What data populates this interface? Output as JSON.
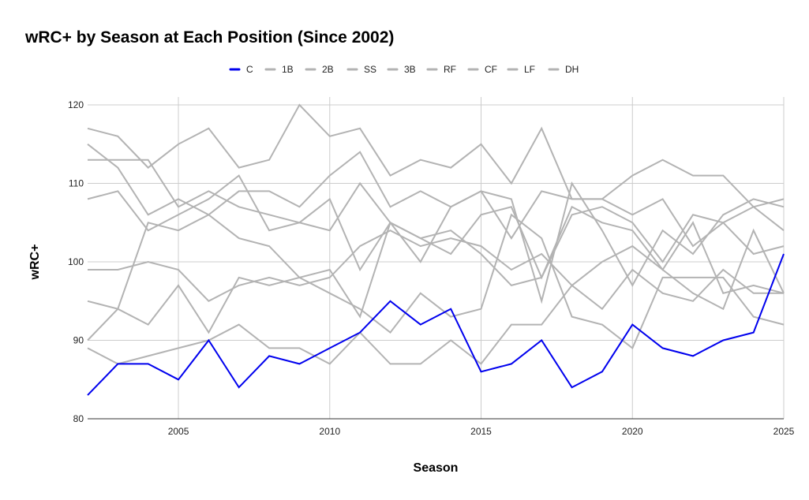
{
  "chart_data": {
    "type": "line",
    "title": "wRC+ by Season at Each Position (Since 2002)",
    "xlabel": "Season",
    "ylabel": "wRC+",
    "xlim": [
      2002,
      2025
    ],
    "ylim": [
      80,
      120
    ],
    "x_ticks": [
      2005,
      2010,
      2015,
      2020,
      2025
    ],
    "y_ticks": [
      80,
      90,
      100,
      110,
      120
    ],
    "grid": true,
    "legend_position": "top-center",
    "x": [
      2002,
      2003,
      2004,
      2005,
      2006,
      2007,
      2008,
      2009,
      2010,
      2011,
      2012,
      2013,
      2014,
      2015,
      2016,
      2017,
      2018,
      2019,
      2020,
      2021,
      2022,
      2023,
      2024,
      2025
    ],
    "series": [
      {
        "name": "1B",
        "color": "#b3b3b3",
        "values": [
          117,
          116,
          112,
          115,
          117,
          112,
          113,
          120,
          116,
          117,
          111,
          113,
          112,
          115,
          110,
          117,
          108,
          108,
          111,
          113,
          111,
          111,
          107,
          104
        ]
      },
      {
        "name": "2B",
        "color": "#b3b3b3",
        "values": [
          89,
          87,
          88,
          89,
          90,
          92,
          89,
          89,
          87,
          91,
          87,
          87,
          90,
          87,
          92,
          92,
          97,
          100,
          102,
          99,
          96,
          94,
          104,
          96
        ]
      },
      {
        "name": "SS",
        "color": "#b3b3b3",
        "values": [
          90,
          94,
          105,
          104,
          106,
          109,
          109,
          107,
          111,
          114,
          107,
          109,
          107,
          109,
          108,
          95,
          110,
          104,
          97,
          104,
          101,
          106,
          108,
          107
        ]
      },
      {
        "name": "3B",
        "color": "#b3b3b3",
        "values": [
          108,
          109,
          104,
          106,
          108,
          111,
          104,
          105,
          104,
          110,
          105,
          103,
          101,
          106,
          107,
          98,
          107,
          105,
          104,
          99,
          105,
          96,
          97,
          96
        ]
      },
      {
        "name": "RF",
        "color": "#b3b3b3",
        "values": [
          115,
          112,
          106,
          108,
          106,
          103,
          102,
          98,
          99,
          93,
          105,
          100,
          107,
          109,
          103,
          109,
          108,
          108,
          106,
          108,
          102,
          105,
          101,
          102
        ]
      },
      {
        "name": "CF",
        "color": "#b3b3b3",
        "values": [
          99,
          99,
          100,
          99,
          95,
          97,
          98,
          97,
          98,
          102,
          104,
          102,
          103,
          102,
          99,
          101,
          97,
          94,
          99,
          96,
          95,
          99,
          96,
          96
        ]
      },
      {
        "name": "LF",
        "color": "#b3b3b3",
        "values": [
          113,
          113,
          113,
          107,
          109,
          107,
          106,
          105,
          108,
          99,
          105,
          103,
          104,
          101,
          97,
          98,
          106,
          107,
          105,
          100,
          106,
          105,
          107,
          108
        ]
      },
      {
        "name": "DH",
        "color": "#b3b3b3",
        "values": [
          95,
          94,
          92,
          97,
          91,
          98,
          97,
          98,
          96,
          94,
          91,
          96,
          93,
          94,
          106,
          103,
          93,
          92,
          89,
          98,
          98,
          98,
          93,
          92
        ]
      },
      {
        "name": "C",
        "color": "#0000ee",
        "values": [
          83,
          87,
          87,
          85,
          90,
          84,
          88,
          87,
          89,
          91,
          95,
          92,
          94,
          86,
          87,
          90,
          84,
          86,
          92,
          89,
          88,
          90,
          91,
          101
        ]
      }
    ],
    "legend_order": [
      "C",
      "1B",
      "2B",
      "SS",
      "3B",
      "RF",
      "CF",
      "LF",
      "DH"
    ]
  }
}
